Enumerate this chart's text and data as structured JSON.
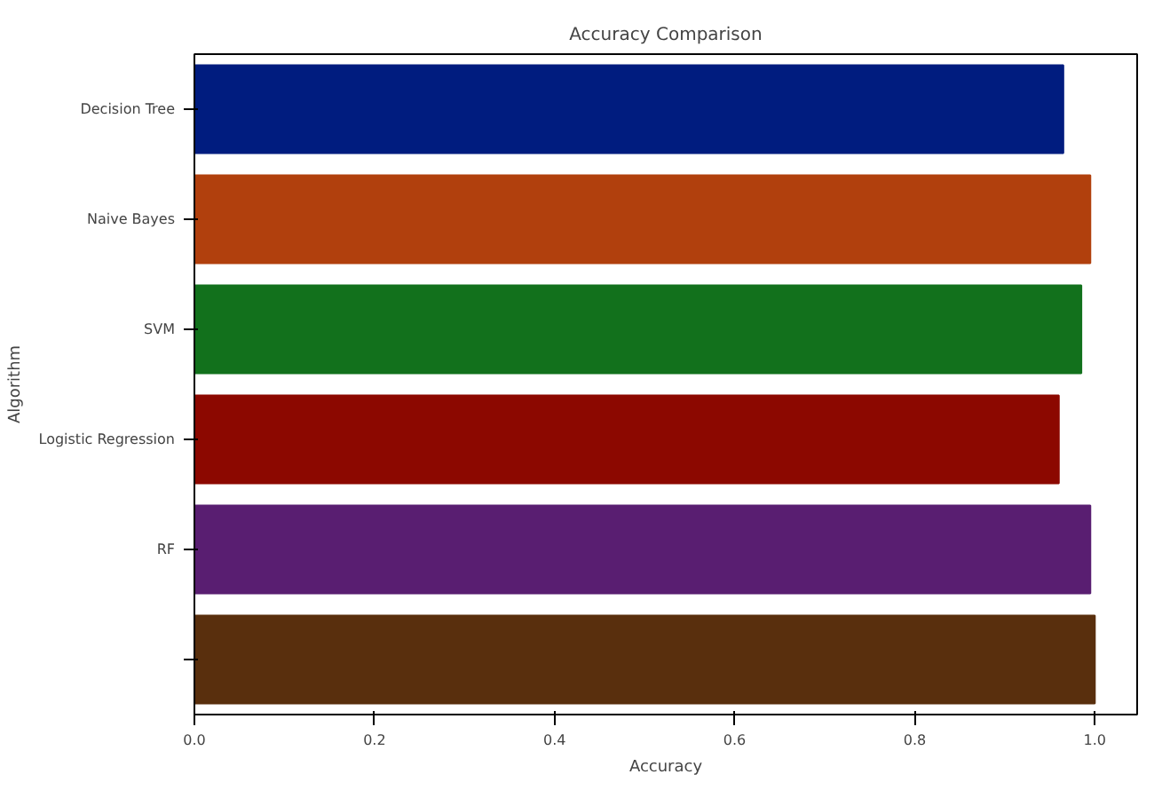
{
  "chart_data": {
    "type": "bar",
    "orientation": "horizontal",
    "title": "Accuracy Comparison",
    "xlabel": "Accuracy",
    "ylabel": "Algorithm",
    "categories": [
      "Decision Tree",
      "Naive Bayes",
      "SVM",
      "Logistic Regression",
      "RF",
      null
    ],
    "values": [
      0.965,
      0.995,
      0.985,
      0.96,
      0.995,
      1.0
    ],
    "colors": [
      "#001c7f",
      "#b1400d",
      "#12711c",
      "#8c0800",
      "#591e71",
      "#592f0d"
    ],
    "xlim": [
      0,
      1.047
    ],
    "xticks": [
      {
        "value": 0,
        "label": "0.0"
      },
      0.2,
      0.4,
      0.6,
      0.8,
      {
        "value": 1,
        "label": "1.0"
      }
    ],
    "grid": false
  }
}
